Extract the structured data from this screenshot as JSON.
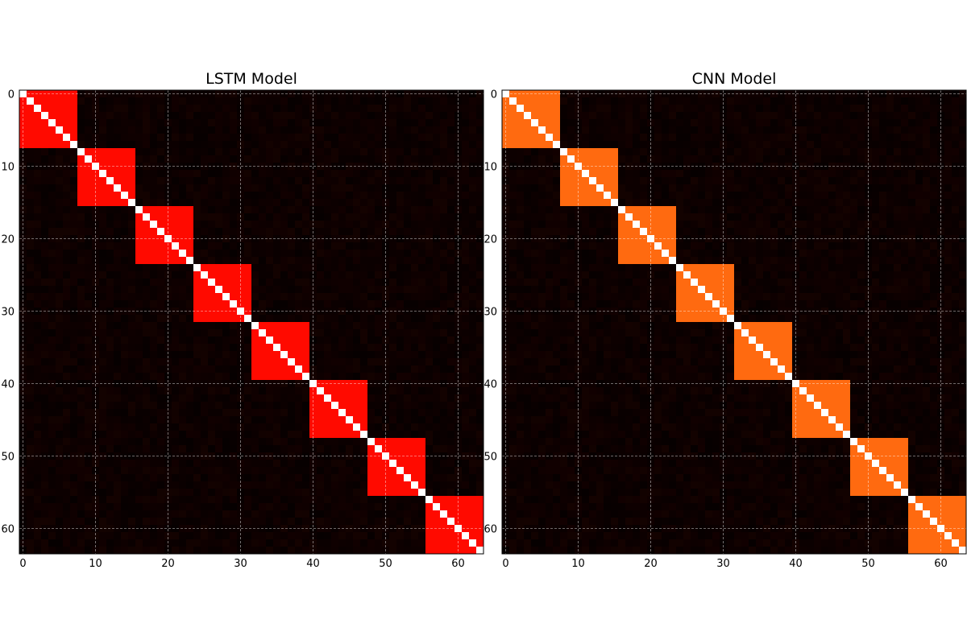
{
  "chart_data": [
    {
      "type": "heatmap",
      "title": "LSTM Model",
      "matrix_size": 64,
      "block_size": 8,
      "diagonal_value": 1.0,
      "block_value": 0.6,
      "background_value": 0.05,
      "diagonal_color": "#ffffff",
      "block_color": "#ff0a00",
      "background_color": "#0d0000",
      "xticks": [
        0,
        10,
        20,
        30,
        40,
        50,
        60
      ],
      "yticks": [
        0,
        10,
        20,
        30,
        40,
        50,
        60
      ],
      "xlim": [
        0,
        63
      ],
      "ylim": [
        63,
        0
      ],
      "grid": true
    },
    {
      "type": "heatmap",
      "title": "CNN Model",
      "matrix_size": 64,
      "block_size": 8,
      "diagonal_value": 1.0,
      "block_value": 0.7,
      "background_value": 0.05,
      "diagonal_color": "#ffffff",
      "block_color": "#ff6a10",
      "background_color": "#0d0000",
      "xticks": [
        0,
        10,
        20,
        30,
        40,
        50,
        60
      ],
      "yticks": [
        0,
        10,
        20,
        30,
        40,
        50,
        60
      ],
      "xlim": [
        0,
        63
      ],
      "ylim": [
        63,
        0
      ],
      "grid": true
    }
  ]
}
